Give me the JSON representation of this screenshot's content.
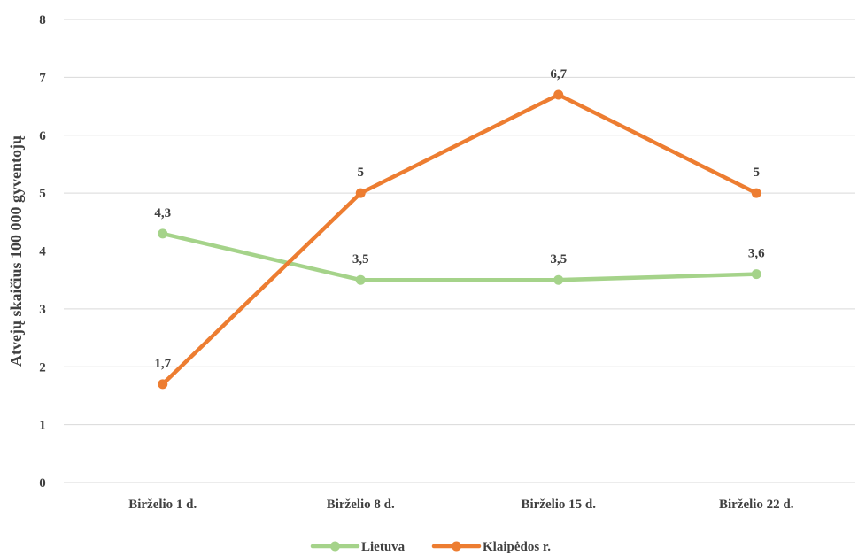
{
  "chart_data": {
    "type": "line",
    "title": "",
    "xlabel": "",
    "ylabel": "Atvejų skaičius 100 000 gyventojų",
    "categories": [
      "Birželio 1 d.",
      "Birželio 8 d.",
      "Birželio 15 d.",
      "Birželio 22 d."
    ],
    "y_ticks": [
      "0",
      "1",
      "2",
      "3",
      "4",
      "5",
      "6",
      "7",
      "8"
    ],
    "ylim": [
      0,
      8
    ],
    "grid": true,
    "legend_position": "bottom",
    "series": [
      {
        "name": "Lietuva",
        "color": "#a5d38a",
        "values": [
          4.3,
          3.5,
          3.5,
          3.6
        ],
        "labels": [
          "4,3",
          "3,5",
          "3,5",
          "3,6"
        ],
        "label_position": "above"
      },
      {
        "name": "Klaipėdos r.",
        "color": "#ed7d31",
        "values": [
          1.7,
          5,
          6.7,
          5
        ],
        "labels": [
          "1,7",
          "5",
          "6,7",
          "5"
        ],
        "label_position": "above"
      }
    ]
  }
}
